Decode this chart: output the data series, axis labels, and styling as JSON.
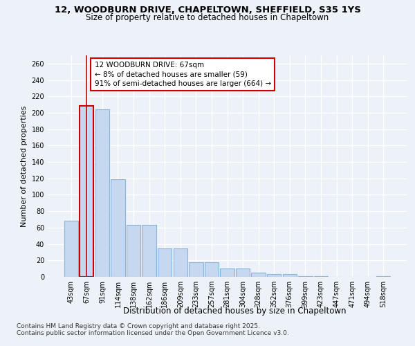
{
  "title_line1": "12, WOODBURN DRIVE, CHAPELTOWN, SHEFFIELD, S35 1YS",
  "title_line2": "Size of property relative to detached houses in Chapeltown",
  "xlabel": "Distribution of detached houses by size in Chapeltown",
  "ylabel": "Number of detached properties",
  "categories": [
    "43sqm",
    "67sqm",
    "91sqm",
    "114sqm",
    "138sqm",
    "162sqm",
    "186sqm",
    "209sqm",
    "233sqm",
    "257sqm",
    "281sqm",
    "304sqm",
    "328sqm",
    "352sqm",
    "376sqm",
    "399sqm",
    "423sqm",
    "447sqm",
    "471sqm",
    "494sqm",
    "518sqm"
  ],
  "values": [
    68,
    208,
    204,
    119,
    63,
    63,
    35,
    35,
    18,
    18,
    10,
    10,
    5,
    3,
    3,
    1,
    1,
    0,
    0,
    0,
    1
  ],
  "bar_color": "#c5d8f0",
  "bar_edge_color": "#8ab4d8",
  "highlight_bar_index": 1,
  "vline_x": 1,
  "vline_color": "#cc0000",
  "annotation_text": "12 WOODBURN DRIVE: 67sqm\n← 8% of detached houses are smaller (59)\n91% of semi-detached houses are larger (664) →",
  "annotation_box_edge_color": "#cc0000",
  "annotation_box_face_color": "#ffffff",
  "ylim": [
    0,
    270
  ],
  "yticks": [
    0,
    20,
    40,
    60,
    80,
    100,
    120,
    140,
    160,
    180,
    200,
    220,
    240,
    260
  ],
  "footer_line1": "Contains HM Land Registry data © Crown copyright and database right 2025.",
  "footer_line2": "Contains public sector information licensed under the Open Government Licence v3.0.",
  "bg_color": "#edf1f8",
  "plot_bg_color": "#edf1f8",
  "grid_color": "#ffffff",
  "title_fontsize": 9.5,
  "subtitle_fontsize": 8.5,
  "axis_label_fontsize": 8,
  "tick_fontsize": 7,
  "footer_fontsize": 6.5,
  "annotation_fontsize": 7.5
}
